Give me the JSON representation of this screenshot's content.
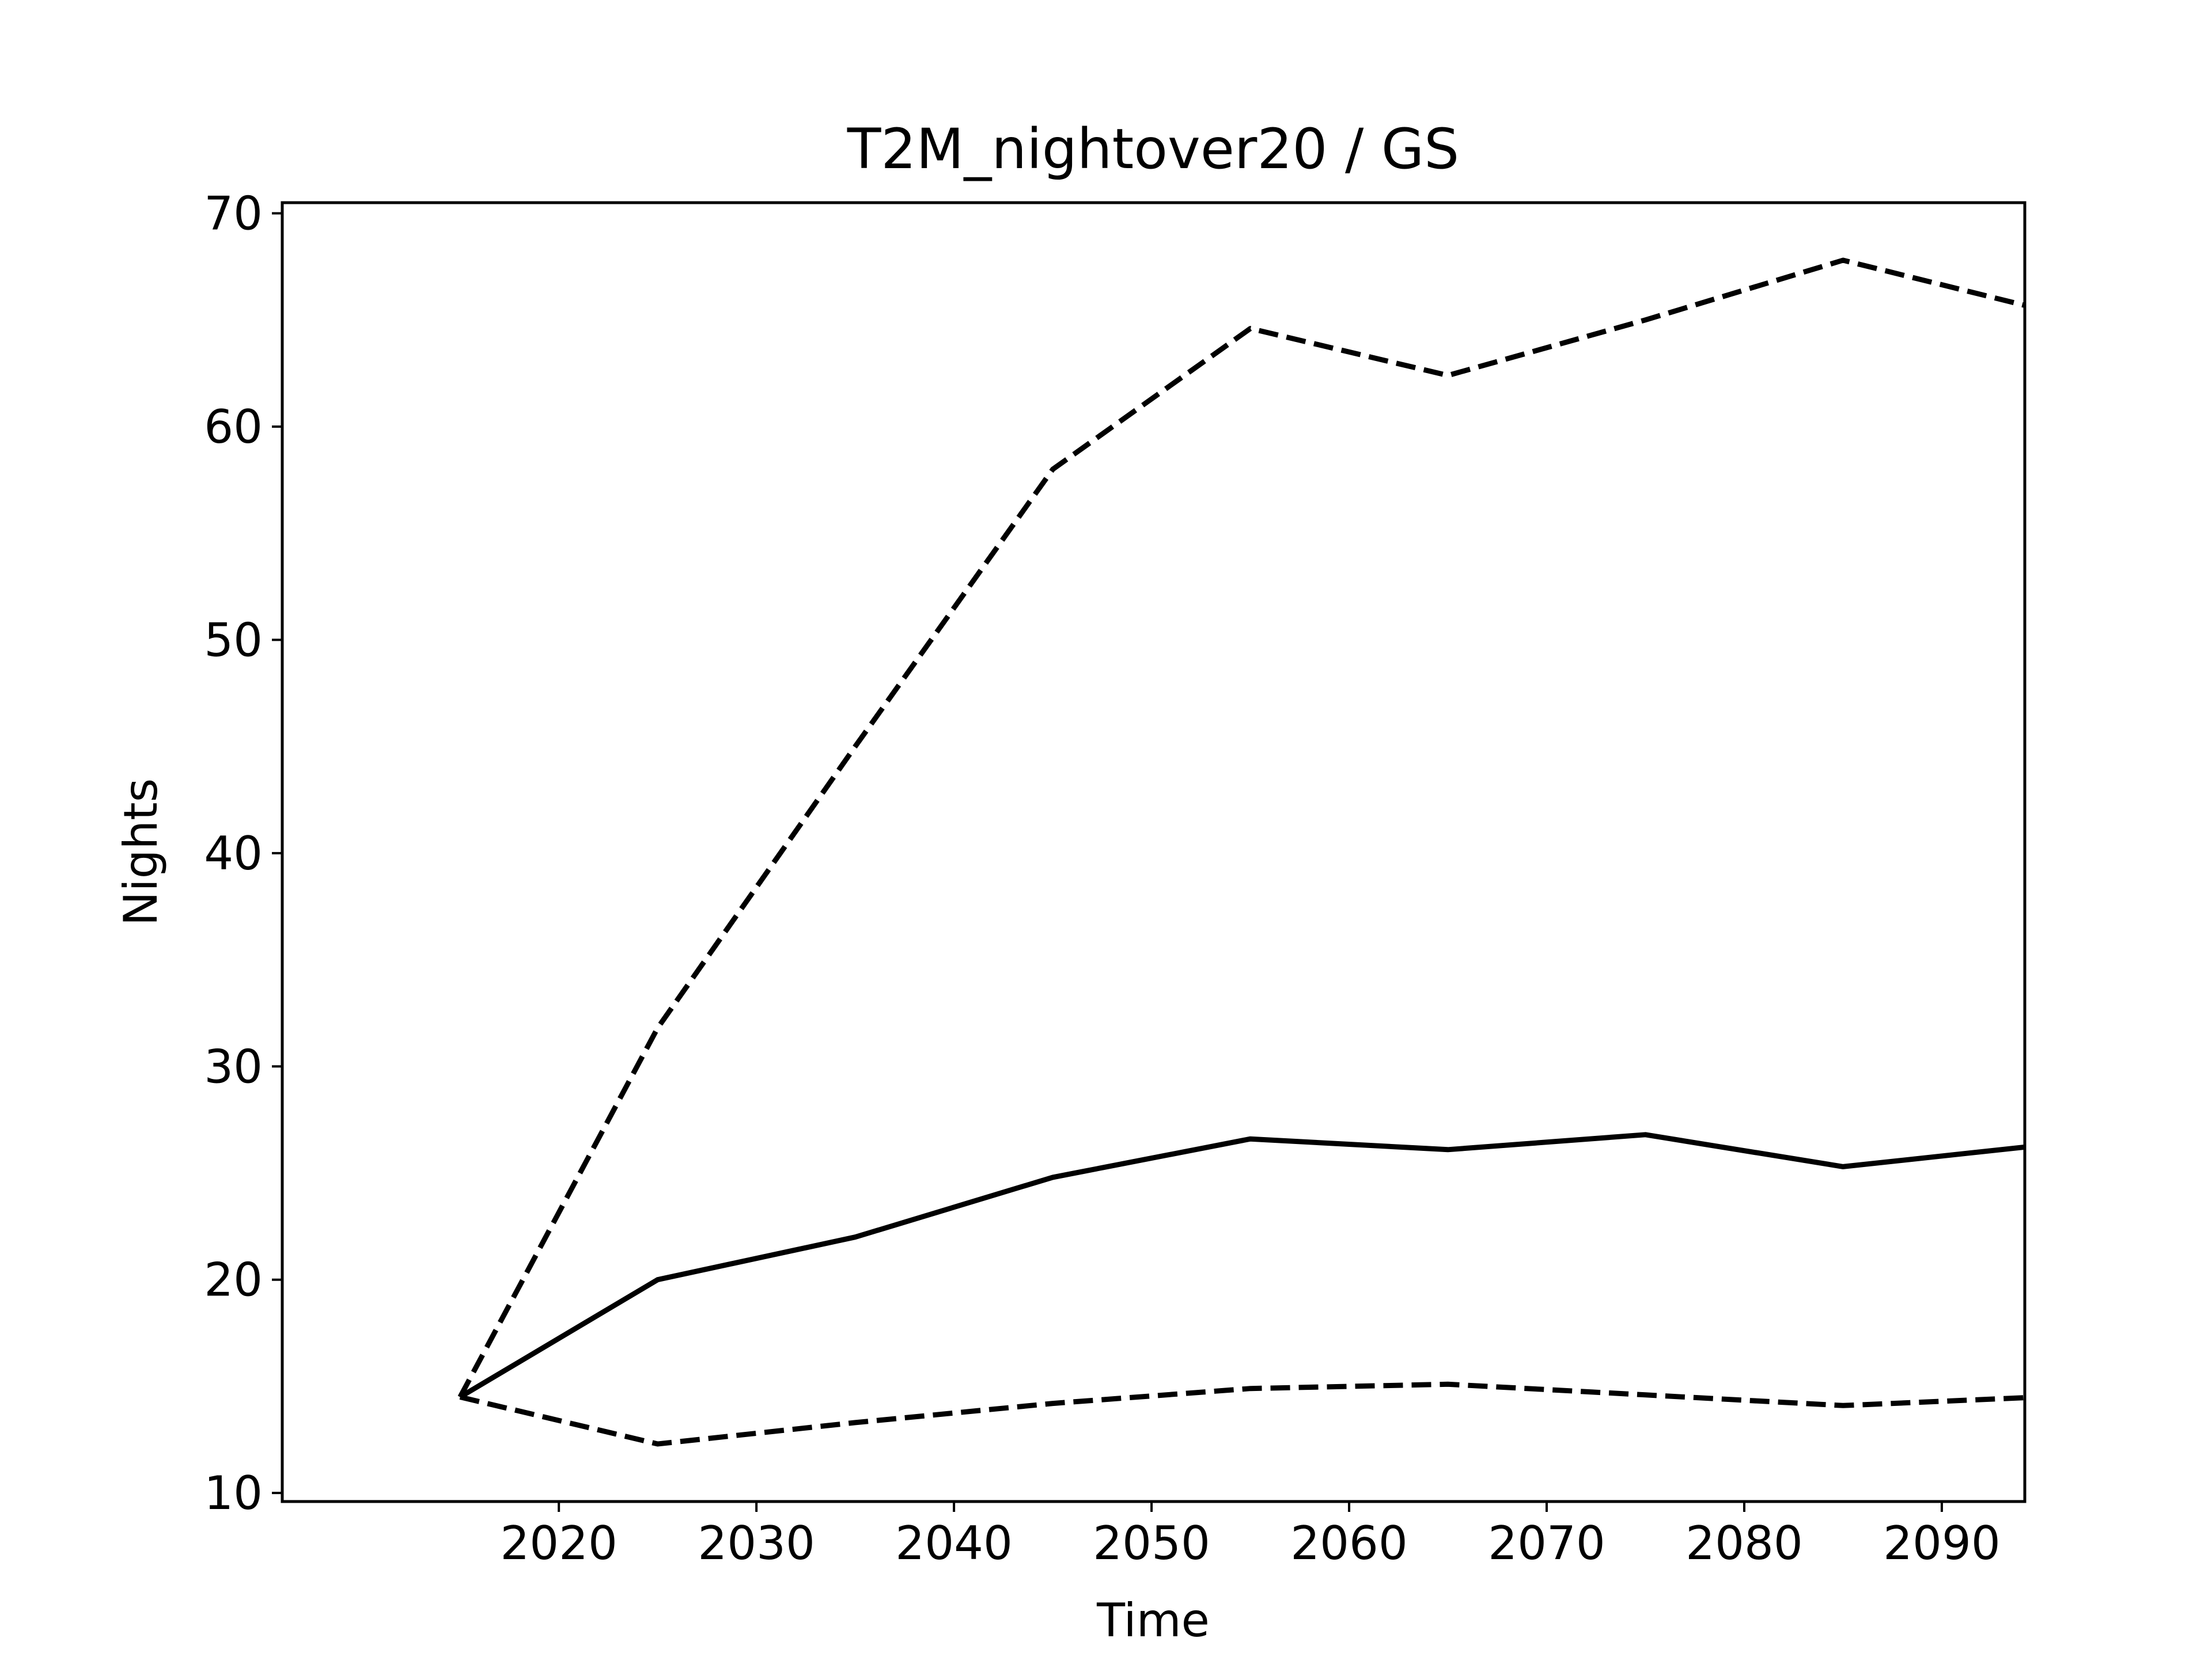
{
  "chart_data": {
    "type": "line",
    "title": "T2M_nightover20 / GS",
    "xlabel": "Time",
    "ylabel": "Nights",
    "x": [
      2015,
      2025,
      2035,
      2045,
      2055,
      2065,
      2075,
      2085,
      2095
    ],
    "xlim": [
      2006,
      2094.2
    ],
    "ylim": [
      9.6,
      70.5
    ],
    "xticks": [
      2020,
      2030,
      2040,
      2050,
      2060,
      2070,
      2080,
      2090
    ],
    "yticks": [
      10,
      20,
      30,
      40,
      50,
      60,
      70
    ],
    "grid": false,
    "legend": "none",
    "series": [
      {
        "style": "solid",
        "color": "#000000",
        "values": [
          14.5,
          20.0,
          22.0,
          24.8,
          26.6,
          26.1,
          26.8,
          25.3,
          26.3
        ]
      },
      {
        "style": "dashed",
        "color": "#000000",
        "values": [
          14.5,
          31.8,
          45.0,
          58.0,
          64.6,
          62.4,
          65.0,
          67.8,
          65.5
        ]
      },
      {
        "style": "dashed",
        "color": "#000000",
        "values": [
          14.5,
          12.3,
          13.3,
          14.2,
          14.9,
          15.1,
          14.6,
          14.1,
          14.5
        ]
      }
    ]
  }
}
